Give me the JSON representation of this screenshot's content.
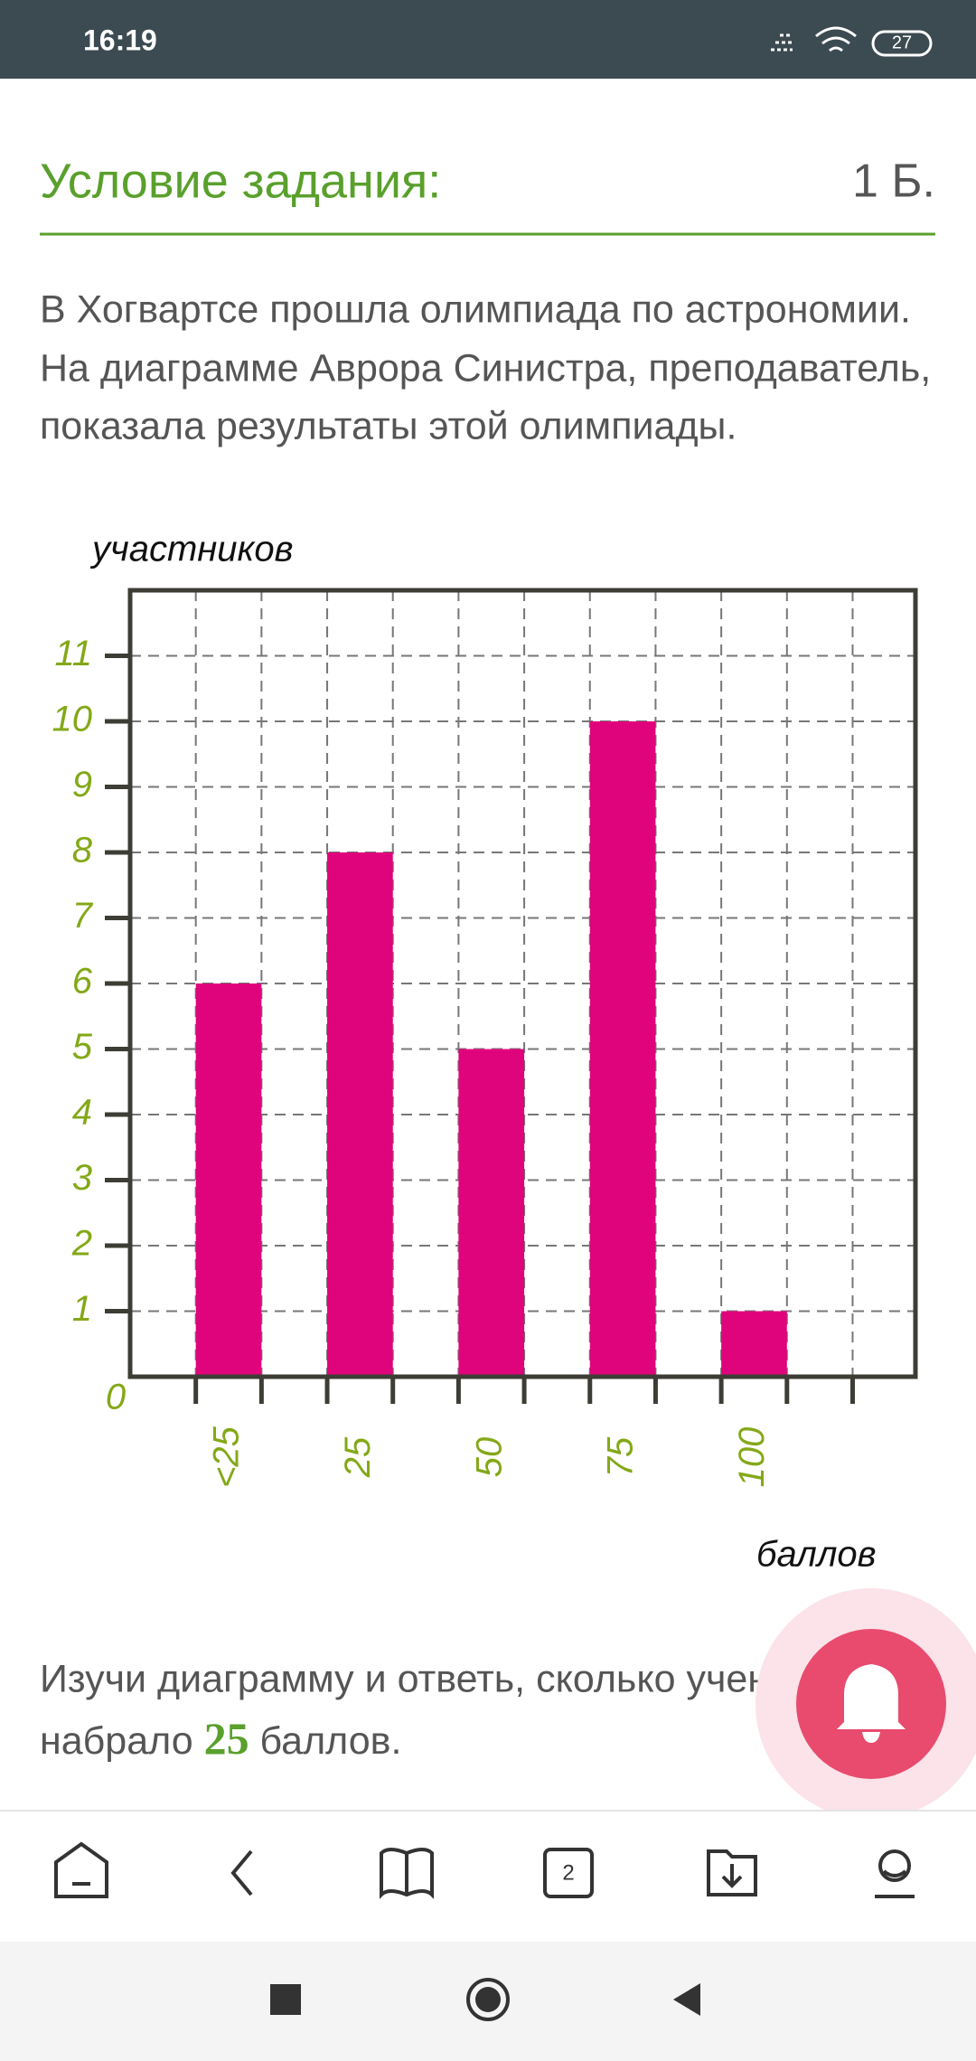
{
  "status_bar": {
    "time": "16:19",
    "battery": "27"
  },
  "header": {
    "title": "Условие задания:",
    "points": "1 Б."
  },
  "task_text": [
    "В Хогвартсе прошла олимпиада по астрономии.",
    "На диаграмме Аврора Синистра, преподаватель,",
    "показала результаты этой олимпиады."
  ],
  "chart_data": {
    "type": "bar",
    "y_label": "участников",
    "x_label": "баллов",
    "categories": [
      "<25",
      "25",
      "50",
      "75",
      "100"
    ],
    "values": [
      6,
      8,
      5,
      10,
      1
    ],
    "color": "#e0047c",
    "ylim": [
      0,
      12
    ],
    "yticks": [
      0,
      1,
      2,
      3,
      4,
      5,
      6,
      7,
      8,
      9,
      10,
      11
    ],
    "grid": true
  },
  "question": {
    "line1": "Изучи диаграмму и ответь, сколько учени",
    "before": "набрало",
    "number": "25",
    "after": "баллов."
  },
  "bottom_nav": {
    "badge": "2"
  }
}
